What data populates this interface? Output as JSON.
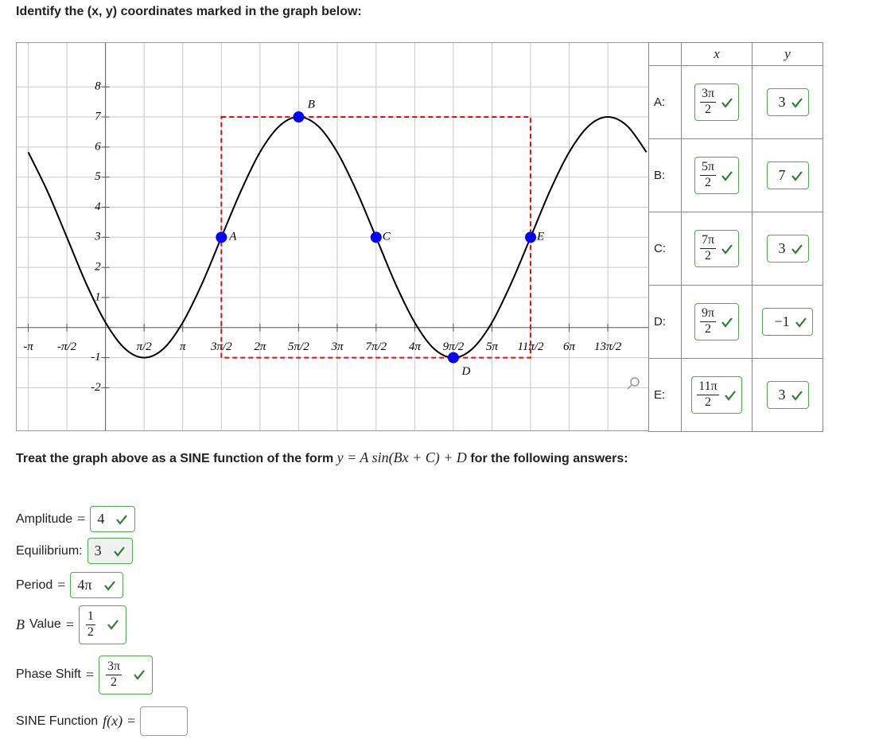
{
  "question": "Identify the (x, y) coordinates marked in the graph below:",
  "graph": {
    "xlim": [
      -3.61,
      22.13
    ],
    "ylim": [
      -3.47,
      9.46
    ],
    "xticks": [
      {
        "value": -3.14,
        "label": "-π"
      },
      {
        "value": -1.57,
        "label": "-π/2"
      },
      {
        "value": 1.57,
        "label": "π/2"
      },
      {
        "value": 3.14,
        "label": "π"
      },
      {
        "value": 4.71,
        "label": "3π/2"
      },
      {
        "value": 6.28,
        "label": "2π"
      },
      {
        "value": 7.85,
        "label": "5π/2"
      },
      {
        "value": 9.42,
        "label": "3π"
      },
      {
        "value": 11.0,
        "label": "7π/2"
      },
      {
        "value": 12.57,
        "label": "4π"
      },
      {
        "value": 14.14,
        "label": "9π/2"
      },
      {
        "value": 15.71,
        "label": "5π"
      },
      {
        "value": 17.28,
        "label": "11π/2"
      },
      {
        "value": 18.85,
        "label": "6π"
      },
      {
        "value": 20.42,
        "label": "13π/2"
      }
    ],
    "yticks": [
      -2,
      -1,
      1,
      2,
      3,
      4,
      5,
      6,
      7,
      8
    ],
    "grid": true,
    "curve": {
      "color": "#000000",
      "x": [
        -3.14,
        -2.36,
        -1.57,
        -0.79,
        0,
        0.79,
        1.57,
        2.36,
        3.14,
        3.93,
        4.71,
        5.5,
        6.28,
        7.07,
        7.85,
        8.64,
        9.42,
        10.21,
        11.0,
        11.78,
        12.57,
        13.35,
        14.14,
        14.92,
        15.71,
        16.49,
        17.28,
        18.06,
        18.85,
        19.64,
        20.42,
        21.21,
        21.99
      ],
      "y": [
        5.83,
        4.53,
        3,
        1.47,
        0.17,
        -0.7,
        -1,
        -0.7,
        0.17,
        1.47,
        3,
        4.53,
        5.83,
        6.7,
        7,
        6.7,
        5.83,
        4.53,
        3,
        1.47,
        0.17,
        -0.7,
        -1,
        -0.7,
        0.17,
        1.47,
        3,
        4.53,
        5.83,
        6.7,
        7,
        6.7,
        5.83
      ]
    },
    "points": [
      {
        "label": "A",
        "x": 4.71,
        "y": 3
      },
      {
        "label": "B",
        "x": 7.85,
        "y": 7
      },
      {
        "label": "C",
        "x": 11.0,
        "y": 3
      },
      {
        "label": "D",
        "x": 14.14,
        "y": -1
      },
      {
        "label": "E",
        "x": 17.28,
        "y": 3
      }
    ],
    "point_color": "#0000ff",
    "box_color": "#e01010"
  },
  "table": {
    "header": {
      "x": "x",
      "y": "y"
    },
    "rows": [
      {
        "label": "A:",
        "x": {
          "numerator": "3π",
          "denominator": "2"
        },
        "y": "3"
      },
      {
        "label": "B:",
        "x": {
          "numerator": "5π",
          "denominator": "2"
        },
        "y": "7"
      },
      {
        "label": "C:",
        "x": {
          "numerator": "7π",
          "denominator": "2"
        },
        "y": "3"
      },
      {
        "label": "D:",
        "x": {
          "numerator": "9π",
          "denominator": "2"
        },
        "y": "−1"
      },
      {
        "label": "E:",
        "x": {
          "numerator": "11π",
          "denominator": "2"
        },
        "y": "3"
      }
    ]
  },
  "instructions": {
    "prefix": "Treat the graph above as a SINE function of the form ",
    "formula": "y = A sin(Bx + C) + D",
    "suffix": " for the following answers:"
  },
  "answers": [
    {
      "label": "Amplitude",
      "relation": "=",
      "value": "4"
    },
    {
      "label": "Equilibrium:",
      "value": "3"
    },
    {
      "label": "Period",
      "relation": "=",
      "value": "4π"
    },
    {
      "var": "B",
      "label": "Value",
      "relation": "=",
      "value": {
        "numerator": "1",
        "denominator": "2"
      }
    },
    {
      "label": "Phase Shift",
      "relation": "=",
      "value": {
        "numerator": "3π",
        "denominator": "2"
      }
    },
    {
      "label": "SINE Function",
      "var": "f(x)",
      "relation": "="
    }
  ]
}
